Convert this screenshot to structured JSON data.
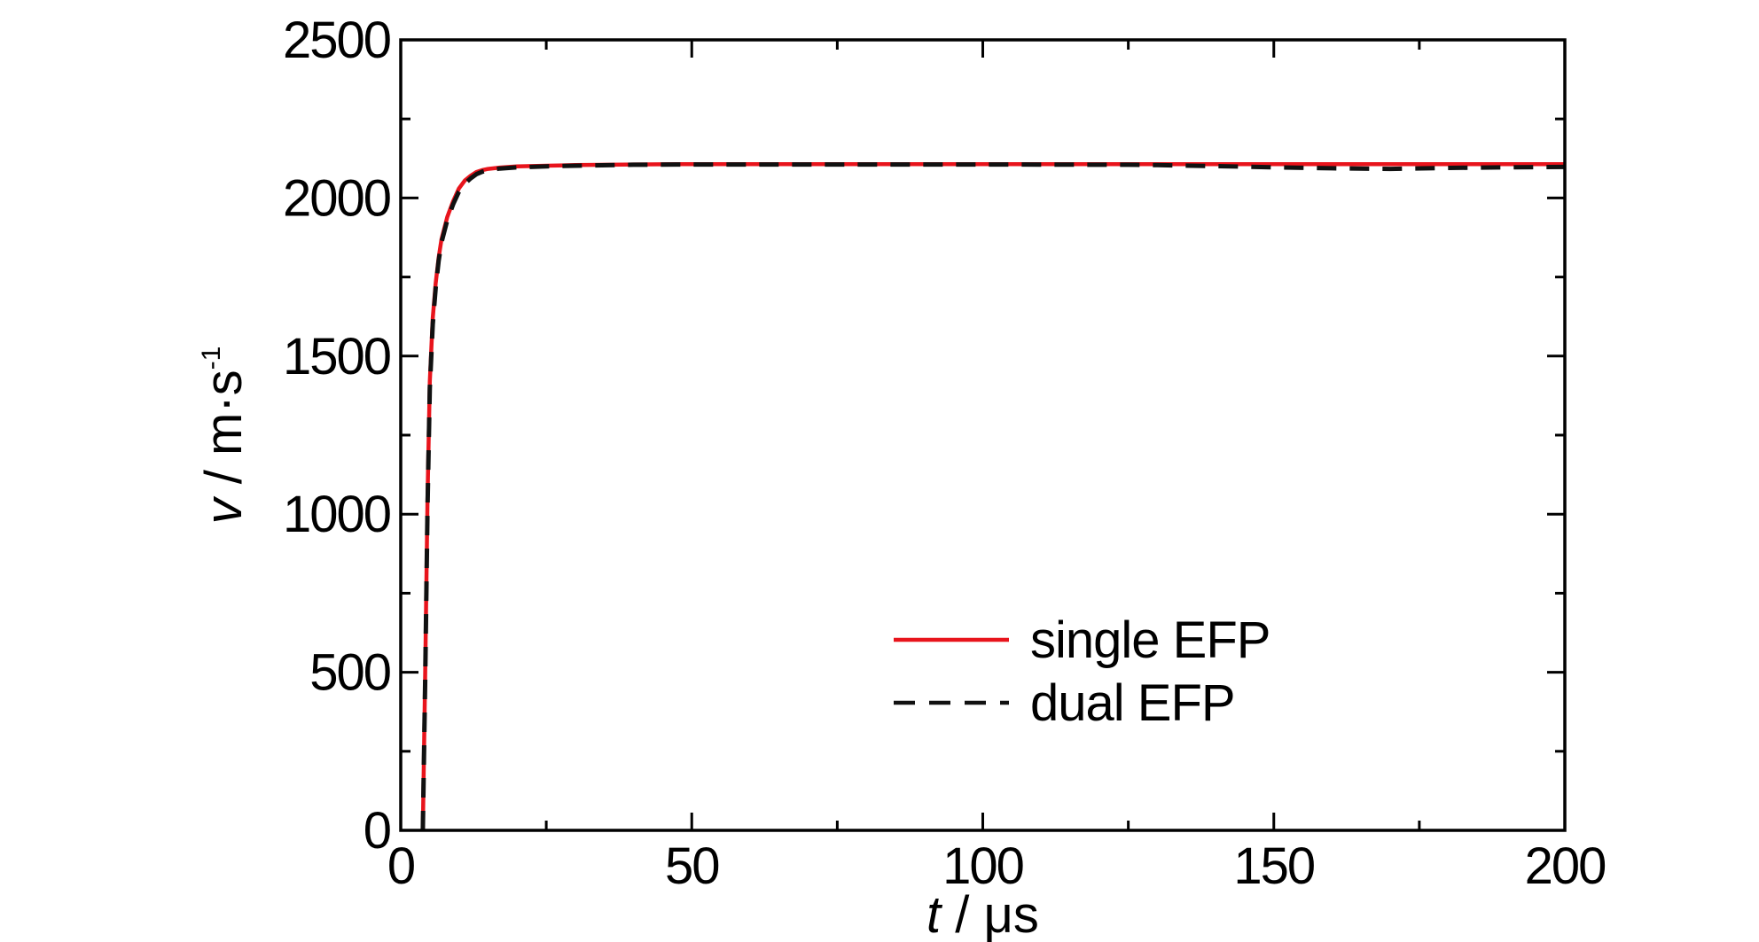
{
  "chart_data": {
    "type": "line",
    "title": "",
    "xlabel": {
      "var": "t",
      "unit": " / μs"
    },
    "ylabel": {
      "var": "v",
      "unit": " / m·s",
      "sup": "-1"
    },
    "xlim": [
      0,
      200
    ],
    "ylim": [
      0,
      2500
    ],
    "x_ticks": [
      0,
      50,
      100,
      150,
      200
    ],
    "y_ticks": [
      0,
      500,
      1000,
      1500,
      2000,
      2500
    ],
    "x_ticks_minor": [
      25,
      75,
      125,
      175
    ],
    "y_ticks_minor": [
      250,
      750,
      1250,
      1750,
      2250
    ],
    "grid": false,
    "legend_position": "lower-right",
    "series": [
      {
        "name": "single EFP",
        "color": "#e8141c",
        "style": "solid",
        "x": [
          3.8,
          4.2,
          4.6,
          5.0,
          5.5,
          6.0,
          6.5,
          7.0,
          8.0,
          9.0,
          10.0,
          11.0,
          12.0,
          13.0,
          14.0,
          15.0,
          17.0,
          20.0,
          25.0,
          30.0,
          40.0,
          50.0,
          75.0,
          100.0,
          125.0,
          150.0,
          175.0,
          200.0
        ],
        "y": [
          0,
          500,
          1050,
          1420,
          1620,
          1730,
          1810,
          1870,
          1940,
          1990,
          2030,
          2055,
          2070,
          2082,
          2088,
          2092,
          2096,
          2100,
          2102,
          2104,
          2106,
          2107,
          2107,
          2107,
          2107,
          2107,
          2107,
          2107
        ]
      },
      {
        "name": "dual EFP",
        "color": "#111111",
        "style": "dashed",
        "x": [
          3.8,
          4.2,
          4.6,
          5.0,
          5.5,
          6.0,
          6.5,
          7.0,
          8.0,
          9.0,
          10.0,
          11.0,
          12.0,
          13.0,
          14.0,
          15.0,
          17.0,
          20.0,
          25.0,
          30.0,
          40.0,
          50.0,
          75.0,
          100.0,
          125.0,
          130.0,
          140.0,
          150.0,
          160.0,
          170.0,
          180.0,
          190.0,
          200.0
        ],
        "y": [
          0,
          480,
          1020,
          1400,
          1600,
          1715,
          1800,
          1860,
          1930,
          1980,
          2020,
          2045,
          2062,
          2075,
          2083,
          2088,
          2093,
          2097,
          2100,
          2102,
          2105,
          2106,
          2106,
          2106,
          2105,
          2104,
          2101,
          2097,
          2094,
          2092,
          2095,
          2097,
          2098
        ]
      }
    ]
  }
}
